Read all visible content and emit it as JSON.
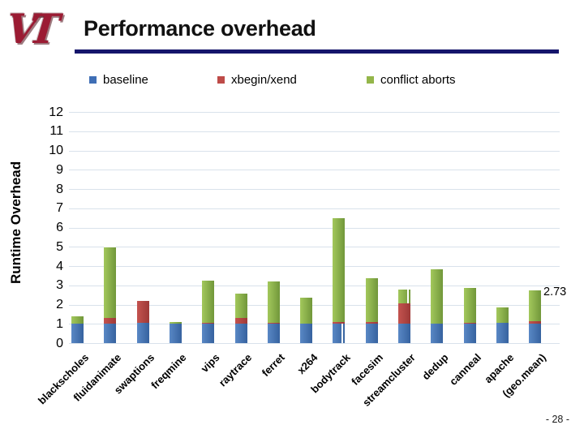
{
  "slide": {
    "logo_text": "VT",
    "title": "Performance overhead",
    "page_number": "- 28 -"
  },
  "chart_data": {
    "type": "bar",
    "stacked": true,
    "title": "",
    "xlabel": "",
    "ylabel": "Runtime Overhead",
    "ylim": [
      0,
      12
    ],
    "ytick_step": 1,
    "grid": true,
    "legend_position": "top",
    "categories": [
      "blackscholes",
      "fluidanimate",
      "swaptions",
      "freqmine",
      "vips",
      "raytrace",
      "ferret",
      "x264",
      "bodytrack",
      "facesim",
      "streamcluster",
      "dedup",
      "canneal",
      "apache",
      "(geo.mean)"
    ],
    "series": [
      {
        "name": "baseline",
        "color": "#3F6EB5",
        "values": [
          1.0,
          1.0,
          1.05,
          1.0,
          1.0,
          1.0,
          1.0,
          1.0,
          1.0,
          1.0,
          1.0,
          1.0,
          1.0,
          1.05,
          1.0
        ]
      },
      {
        "name": "xbegin/xend",
        "color": "#BE4B48",
        "values": [
          0.03,
          0.3,
          1.15,
          0.02,
          0.05,
          0.3,
          0.05,
          0.03,
          0.08,
          0.1,
          1.05,
          0.02,
          0.05,
          0.0,
          0.15
        ]
      },
      {
        "name": "conflict aborts",
        "color": "#94B64A",
        "values": [
          0.35,
          3.65,
          0.0,
          0.06,
          2.2,
          1.25,
          2.15,
          1.32,
          5.4,
          2.25,
          0.75,
          2.83,
          1.8,
          0.8,
          1.58
        ]
      }
    ],
    "annotations": [
      {
        "text": "2.73",
        "category": "(geo.mean)",
        "value": 2.73
      }
    ],
    "artifacts": [
      {
        "category_index": 8,
        "series_index": 0
      },
      {
        "category_index": 10,
        "series_index": 2
      }
    ]
  },
  "colors": {
    "title_rule": "#15156B",
    "logo": "#9B1B33",
    "gridline": "#D9E2EB"
  }
}
